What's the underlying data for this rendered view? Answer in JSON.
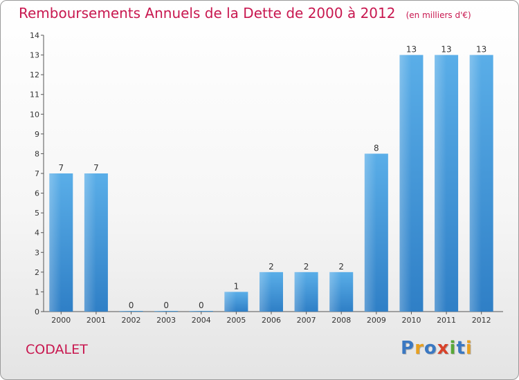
{
  "header": {
    "title": "Remboursements Annuels de la Dette de 2000 à 2012",
    "subtitle": "(en milliers d'€)"
  },
  "footer": {
    "commune": "CODALET",
    "logo_letters": [
      "P",
      "r",
      "o",
      "x",
      "i",
      "t",
      "i"
    ],
    "logo_colors": [
      "#3a78c2",
      "#e8a020",
      "#3a78c2",
      "#d8422a",
      "#58a838",
      "#3a78c2",
      "#e8a020"
    ]
  },
  "colors": {
    "title": "#c8174f",
    "bar_light": "#5aaee8",
    "bar_dark": "#2f7fc6"
  },
  "chart_data": {
    "type": "bar",
    "title": "Remboursements Annuels de la Dette de 2000 à 2012",
    "categories": [
      "2000",
      "2001",
      "2002",
      "2003",
      "2004",
      "2005",
      "2006",
      "2007",
      "2008",
      "2009",
      "2010",
      "2011",
      "2012"
    ],
    "values": [
      7,
      7,
      0,
      0,
      0,
      1,
      2,
      2,
      2,
      8,
      13,
      13,
      13
    ],
    "value_labels": [
      "7",
      "7",
      "0",
      "0",
      "0",
      "1",
      "2",
      "2",
      "2",
      "8",
      "13",
      "13",
      "13"
    ],
    "y_ticks": [
      0,
      1,
      2,
      3,
      4,
      5,
      6,
      7,
      8,
      9,
      10,
      11,
      12,
      13,
      14
    ],
    "ylim": [
      0,
      14
    ],
    "grid": false,
    "legend": "none"
  }
}
